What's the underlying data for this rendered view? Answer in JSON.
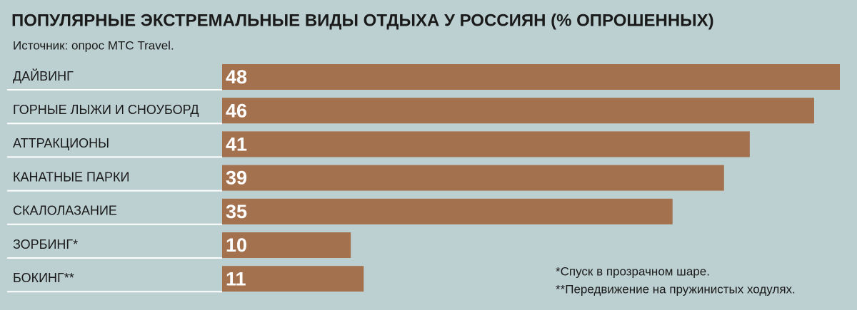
{
  "chart_data": {
    "type": "bar",
    "orientation": "horizontal",
    "title": "ПОПУЛЯРНЫЕ ЭКСТРЕМАЛЬНЫЕ ВИДЫ ОТДЫХА У РОССИЯН (% ОПРОШЕННЫХ)",
    "subtitle": "Источник: опрос МТС Travel.",
    "categories": [
      "ДАЙВИНГ",
      "ГОРНЫЕ ЛЫЖИ И СНОУБОРД",
      "АТТРАКЦИОНЫ",
      "КАНАТНЫЕ ПАРКИ",
      "СКАЛОЛАЗАНИЕ",
      "ЗОРБИНГ*",
      "БОКИНГ**"
    ],
    "values": [
      48,
      46,
      41,
      39,
      35,
      10,
      11
    ],
    "color": "#a4714f",
    "annotations": [
      "*Спуск в прозрачном шаре.",
      "**Передвижение на пружинистых ходулях."
    ]
  }
}
